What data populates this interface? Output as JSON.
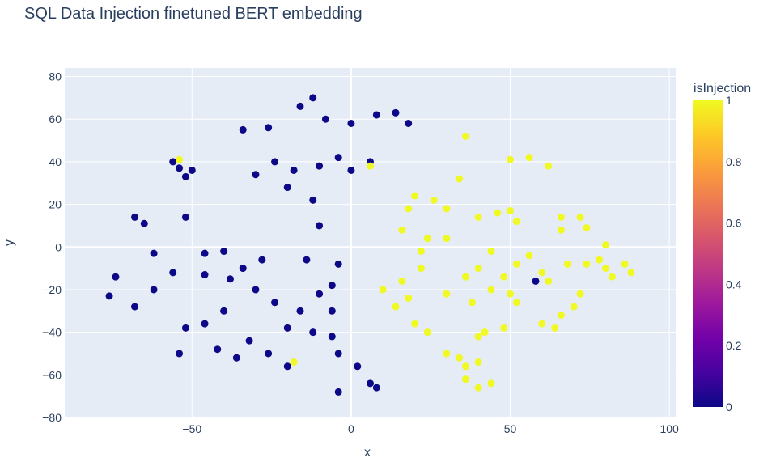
{
  "chart_data": {
    "type": "scatter",
    "title": "SQL Data Injection finetuned BERT embedding",
    "xlabel": "x",
    "ylabel": "y",
    "xlim": [
      -90,
      102
    ],
    "ylim": [
      -80,
      84
    ],
    "x_ticks": [
      -50,
      0,
      50,
      100
    ],
    "y_ticks": [
      -80,
      -60,
      -40,
      -20,
      0,
      20,
      40,
      60,
      80
    ],
    "x_tick_labels": [
      "−50",
      "0",
      "50",
      "100"
    ],
    "y_tick_labels": [
      "−80",
      "−60",
      "−40",
      "−20",
      "0",
      "20",
      "40",
      "60",
      "80"
    ],
    "grid": true,
    "color_variable": "isInjection",
    "colorbar": {
      "title": "isInjection",
      "range": [
        0,
        1
      ],
      "ticks": [
        0,
        0.2,
        0.4,
        0.6,
        0.8,
        1
      ],
      "tick_labels": [
        "0",
        "0.2",
        "0.4",
        "0.6",
        "0.8",
        "1"
      ],
      "colorscale": [
        "#0d0887",
        "#46039f",
        "#7201a8",
        "#9c179e",
        "#bd3786",
        "#d8576b",
        "#ed7953",
        "#fb9f3a",
        "#fdca26",
        "#f0f921"
      ]
    },
    "series": [
      {
        "isInjection": 0,
        "color": "#0d0887",
        "points": [
          [
            -54,
            37
          ],
          [
            -50,
            36
          ],
          [
            -56,
            40
          ],
          [
            -52,
            33
          ],
          [
            -34,
            55
          ],
          [
            -26,
            56
          ],
          [
            -16,
            66
          ],
          [
            -12,
            70
          ],
          [
            -8,
            60
          ],
          [
            0,
            58
          ],
          [
            8,
            62
          ],
          [
            14,
            63
          ],
          [
            18,
            58
          ],
          [
            -24,
            40
          ],
          [
            -18,
            36
          ],
          [
            -10,
            38
          ],
          [
            -30,
            34
          ],
          [
            -4,
            42
          ],
          [
            0,
            36
          ],
          [
            6,
            40
          ],
          [
            -20,
            28
          ],
          [
            -12,
            22
          ],
          [
            -10,
            10
          ],
          [
            -68,
            14
          ],
          [
            -65,
            11
          ],
          [
            -52,
            14
          ],
          [
            -62,
            -3
          ],
          [
            -56,
            -12
          ],
          [
            -74,
            -14
          ],
          [
            -76,
            -23
          ],
          [
            -68,
            -28
          ],
          [
            -62,
            -20
          ],
          [
            -46,
            -3
          ],
          [
            -40,
            -2
          ],
          [
            -34,
            -10
          ],
          [
            -28,
            -6
          ],
          [
            -38,
            -15
          ],
          [
            -30,
            -20
          ],
          [
            -24,
            -26
          ],
          [
            -16,
            -30
          ],
          [
            -10,
            -22
          ],
          [
            -6,
            -18
          ],
          [
            -20,
            -38
          ],
          [
            -12,
            -40
          ],
          [
            -40,
            -30
          ],
          [
            -46,
            -36
          ],
          [
            -52,
            -38
          ],
          [
            -42,
            -48
          ],
          [
            -32,
            -44
          ],
          [
            -26,
            -50
          ],
          [
            -36,
            -52
          ],
          [
            -54,
            -50
          ],
          [
            -6,
            -42
          ],
          [
            -4,
            -50
          ],
          [
            -6,
            -30
          ],
          [
            2,
            -56
          ],
          [
            6,
            -64
          ],
          [
            8,
            -66
          ],
          [
            -4,
            -68
          ],
          [
            -20,
            -56
          ],
          [
            -46,
            -13
          ],
          [
            -14,
            -6
          ],
          [
            -4,
            -8
          ],
          [
            58,
            -16
          ]
        ]
      },
      {
        "isInjection": 1,
        "color": "#f0f921",
        "points": [
          [
            20,
            24
          ],
          [
            26,
            22
          ],
          [
            30,
            18
          ],
          [
            18,
            18
          ],
          [
            24,
            4
          ],
          [
            22,
            -2
          ],
          [
            30,
            4
          ],
          [
            16,
            8
          ],
          [
            34,
            32
          ],
          [
            36,
            52
          ],
          [
            50,
            41
          ],
          [
            56,
            42
          ],
          [
            62,
            38
          ],
          [
            46,
            16
          ],
          [
            50,
            17
          ],
          [
            52,
            12
          ],
          [
            40,
            14
          ],
          [
            66,
            14
          ],
          [
            72,
            14
          ],
          [
            74,
            9
          ],
          [
            66,
            8
          ],
          [
            44,
            -2
          ],
          [
            40,
            -10
          ],
          [
            36,
            -14
          ],
          [
            48,
            -14
          ],
          [
            44,
            -20
          ],
          [
            38,
            -26
          ],
          [
            52,
            -8
          ],
          [
            56,
            -4
          ],
          [
            50,
            -22
          ],
          [
            30,
            -22
          ],
          [
            22,
            -10
          ],
          [
            16,
            -16
          ],
          [
            18,
            -24
          ],
          [
            14,
            -28
          ],
          [
            20,
            -36
          ],
          [
            24,
            -40
          ],
          [
            52,
            -26
          ],
          [
            48,
            -38
          ],
          [
            42,
            -40
          ],
          [
            60,
            -36
          ],
          [
            64,
            -38
          ],
          [
            66,
            -32
          ],
          [
            30,
            -50
          ],
          [
            34,
            -52
          ],
          [
            36,
            -56
          ],
          [
            40,
            -54
          ],
          [
            36,
            -62
          ],
          [
            40,
            -66
          ],
          [
            44,
            -64
          ],
          [
            40,
            -42
          ],
          [
            60,
            -12
          ],
          [
            68,
            -8
          ],
          [
            74,
            -8
          ],
          [
            80,
            1
          ],
          [
            80,
            -10
          ],
          [
            86,
            -8
          ],
          [
            88,
            -12
          ],
          [
            82,
            -14
          ],
          [
            72,
            -22
          ],
          [
            62,
            -16
          ],
          [
            78,
            -6
          ],
          [
            70,
            -28
          ],
          [
            10,
            -20
          ],
          [
            -54,
            41
          ],
          [
            -18,
            -54
          ],
          [
            6,
            38
          ]
        ]
      }
    ]
  }
}
